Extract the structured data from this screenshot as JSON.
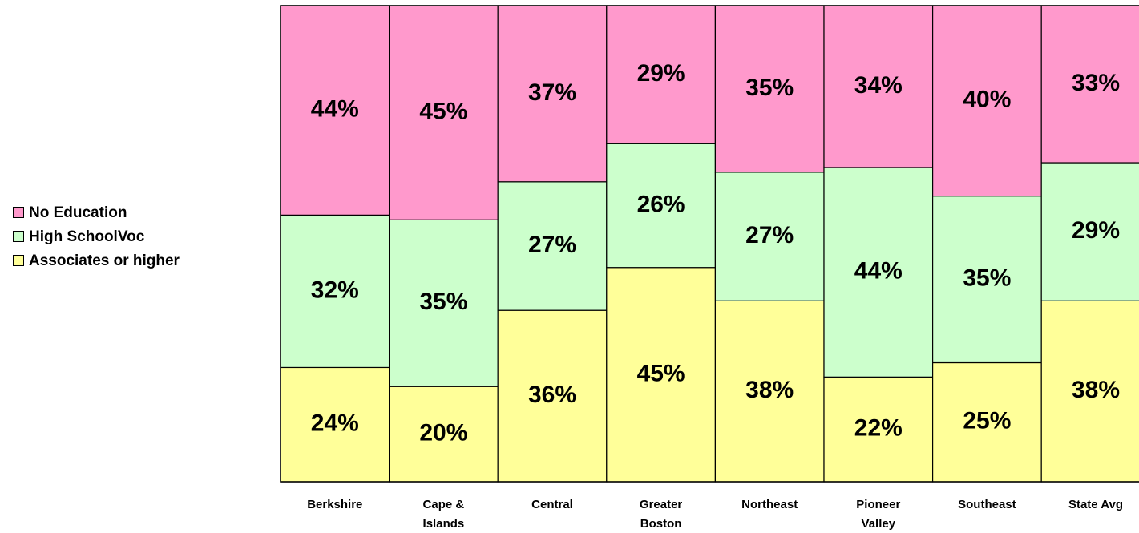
{
  "chart_data": {
    "type": "stacked_bar_100",
    "categories": [
      "Berkshire",
      "Cape & Islands",
      "Central",
      "Greater Boston",
      "Northeast",
      "Pioneer Valley",
      "Southeast",
      "State Avg"
    ],
    "series": [
      {
        "name": "Associates or higher",
        "color": "#FFFF99",
        "values": [
          24,
          20,
          36,
          45,
          38,
          22,
          25,
          38
        ],
        "value_labels": [
          "24%",
          "20%",
          "36%",
          "45%",
          "38%",
          "22%",
          "25%",
          "38%"
        ]
      },
      {
        "name": "High SchoolVoc",
        "color": "#CCFFCC",
        "values": [
          32,
          35,
          27,
          26,
          27,
          44,
          35,
          29
        ],
        "value_labels": [
          "32%",
          "35%",
          "27%",
          "26%",
          "27%",
          "44%",
          "35%",
          "29%"
        ]
      },
      {
        "name": "No Education",
        "color": "#FF99CC",
        "values": [
          44,
          45,
          37,
          29,
          35,
          34,
          40,
          33
        ],
        "value_labels": [
          "44%",
          "45%",
          "37%",
          "29%",
          "35%",
          "34%",
          "40%",
          "33%"
        ]
      }
    ],
    "ylim": [
      0,
      100
    ],
    "legend": "left"
  }
}
